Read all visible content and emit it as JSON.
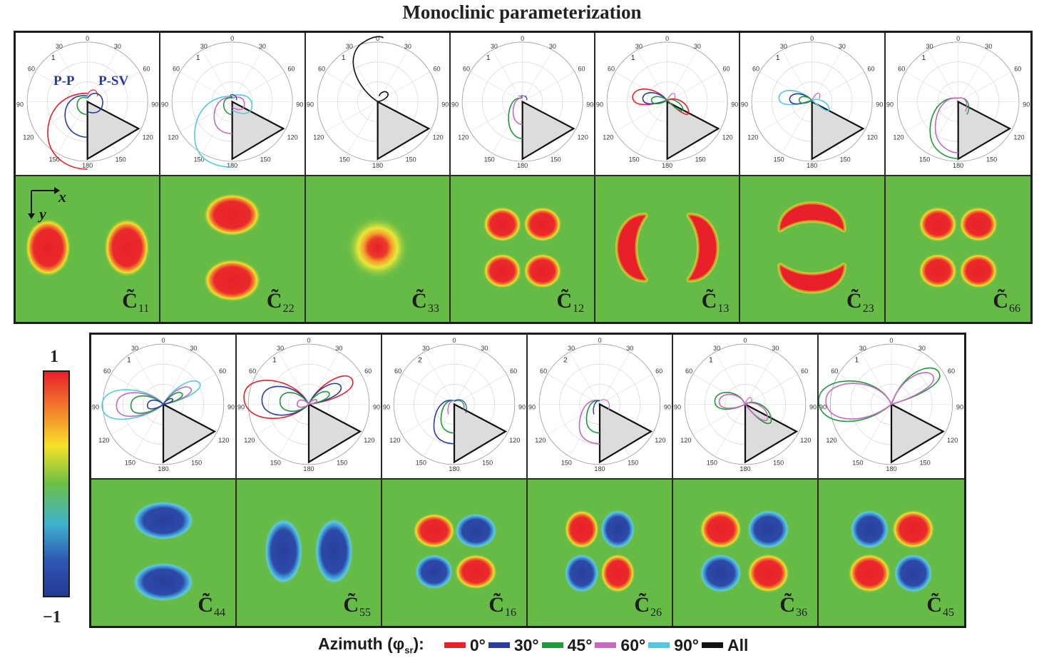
{
  "title": "Monoclinic parameterization",
  "polar": {
    "angle_labels": [
      "0",
      "30",
      "30",
      "60",
      "60",
      "90",
      "90",
      "120",
      "120",
      "150",
      "150",
      "180"
    ],
    "wave_labels": {
      "pp": "P-P",
      "psv": "P-SV"
    },
    "axes": {
      "x": "x",
      "y": "y"
    }
  },
  "colors": {
    "red": "#e8202a",
    "blue": "#2a3fa0",
    "green": "#1f9a3a",
    "magenta": "#c46bc1",
    "cyan": "#55c7e2",
    "black": "#111111",
    "background": "#66bb46"
  },
  "top_panels": [
    {
      "id": "c11",
      "coef": "C",
      "sub": "11",
      "scale": "1",
      "curves": [
        "red",
        "blue",
        "green"
      ],
      "pattern": "two-horizontal-red"
    },
    {
      "id": "c22",
      "coef": "C",
      "sub": "22",
      "scale": "1",
      "curves": [
        "cyan",
        "magenta",
        "green",
        "blue"
      ],
      "pattern": "two-vertical-red"
    },
    {
      "id": "c33",
      "coef": "C",
      "sub": "33",
      "scale": "1",
      "curves": [
        "black"
      ],
      "pattern": "center-red"
    },
    {
      "id": "c12",
      "coef": "C",
      "sub": "12",
      "scale": "1",
      "curves": [
        "green",
        "magenta",
        "blue"
      ],
      "pattern": "four-red"
    },
    {
      "id": "c13",
      "coef": "C",
      "sub": "13",
      "scale": "1",
      "curves": [
        "red",
        "blue",
        "green",
        "magenta"
      ],
      "pattern": "two-crescents-horizontal"
    },
    {
      "id": "c23",
      "coef": "C",
      "sub": "23",
      "scale": "1",
      "curves": [
        "cyan",
        "blue",
        "green",
        "magenta"
      ],
      "pattern": "two-crescents-vertical"
    },
    {
      "id": "c66",
      "coef": "C",
      "sub": "66",
      "scale": "1",
      "curves": [
        "green",
        "magenta"
      ],
      "pattern": "four-red"
    }
  ],
  "bottom_panels": [
    {
      "id": "c44",
      "coef": "C",
      "sub": "44",
      "scale": "1",
      "curves": [
        "cyan",
        "magenta",
        "green",
        "blue"
      ],
      "pattern": "two-vertical-blue"
    },
    {
      "id": "c55",
      "coef": "C",
      "sub": "55",
      "scale": "1",
      "curves": [
        "red",
        "blue",
        "green",
        "magenta"
      ],
      "pattern": "two-horizontal-blue"
    },
    {
      "id": "c16",
      "coef": "C",
      "sub": "16",
      "scale": "2",
      "curves": [
        "blue",
        "green",
        "magenta"
      ],
      "pattern": "quad-red-blue-a"
    },
    {
      "id": "c26",
      "coef": "C",
      "sub": "26",
      "scale": "2",
      "curves": [
        "magenta",
        "green",
        "blue"
      ],
      "pattern": "quad-red-blue-b"
    },
    {
      "id": "c36",
      "coef": "C",
      "sub": "36",
      "scale": "1",
      "curves": [
        "green",
        "magenta"
      ],
      "pattern": "quad-red-blue-c"
    },
    {
      "id": "c45",
      "coef": "C",
      "sub": "45",
      "scale": "1",
      "curves": [
        "green",
        "magenta"
      ],
      "pattern": "quad-blue-red"
    }
  ],
  "colorbar": {
    "max": "1",
    "min": "−1"
  },
  "legend": {
    "title": "Azimuth (φ",
    "title_sub": "sr",
    "title_end": "):",
    "items": [
      {
        "label": "0°",
        "color": "#e8202a"
      },
      {
        "label": "30°",
        "color": "#2a3fa0"
      },
      {
        "label": "45°",
        "color": "#1f9a3a"
      },
      {
        "label": "60°",
        "color": "#c46bc1"
      },
      {
        "label": "90°",
        "color": "#55c7e2"
      },
      {
        "label": "All",
        "color": "#111111"
      }
    ]
  }
}
